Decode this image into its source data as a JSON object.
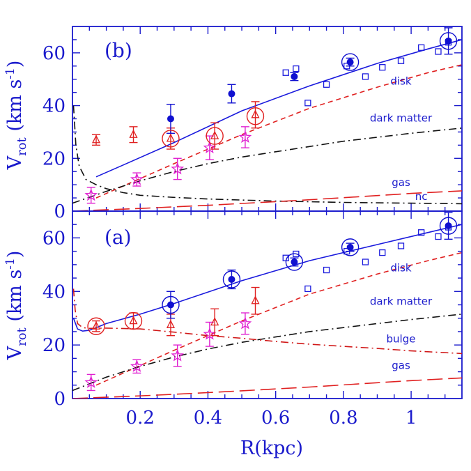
{
  "figure": {
    "y_label_main": "V",
    "y_label_sub": "rot",
    "y_label_unit": " (km s",
    "y_label_exp": "-1",
    "y_label_close": ")",
    "x_label": "R(kpc)",
    "colors": {
      "axis": "#1a1acc",
      "total": "#1a1add",
      "disk": "#e02020",
      "dark_matter": "#111111",
      "bulge": "#d01818",
      "gas": "#e02020",
      "nc": "#111111",
      "filled_points": "#1010d0",
      "open_squares": "#1a1add",
      "triangles": "#e02020",
      "stars": "#e020d0"
    }
  },
  "chart_data": [
    {
      "panel": "(b)",
      "type": "line",
      "xlim": [
        0.0,
        1.15
      ],
      "ylim": [
        0,
        70
      ],
      "x_ticks": [
        0.2,
        0.4,
        0.6,
        0.8,
        1.0
      ],
      "x_tick_labels": [
        "0.2",
        "0.4",
        "0.6",
        "0.8",
        "1"
      ],
      "y_ticks": [
        0,
        20,
        40,
        60
      ],
      "y_tick_labels": [
        "0",
        "20",
        "40",
        "60"
      ],
      "curves": [
        {
          "name": "total",
          "label": "",
          "style": "solid",
          "color_key": "total",
          "x": [
            0.07,
            0.15,
            0.3,
            0.5,
            0.7,
            0.9,
            1.05,
            1.15
          ],
          "y": [
            13,
            17.5,
            26,
            38,
            47.5,
            56,
            61.5,
            65
          ]
        },
        {
          "name": "disk",
          "label": "disk",
          "label_at": [
            0.97,
            48
          ],
          "style": "dashed",
          "color_key": "disk",
          "x": [
            0.07,
            0.15,
            0.3,
            0.5,
            0.7,
            0.9,
            1.05,
            1.15
          ],
          "y": [
            5,
            9.5,
            18,
            29,
            39,
            47,
            52.5,
            55.5
          ]
        },
        {
          "name": "dark_matter",
          "label": "dark matter",
          "label_at": [
            0.97,
            34
          ],
          "style": "dashdot",
          "color_key": "dark_matter",
          "x": [
            0.0,
            0.1,
            0.2,
            0.3,
            0.4,
            0.5,
            0.6,
            0.7,
            0.8,
            0.9,
            1.0,
            1.15
          ],
          "y": [
            3,
            7.5,
            11.5,
            15,
            18,
            20.5,
            22.5,
            24.5,
            26.5,
            28,
            29.5,
            31.5
          ]
        },
        {
          "name": "nc",
          "label": "nc",
          "label_at": [
            1.03,
            4.2
          ],
          "style": "dashdot",
          "color_key": "nc",
          "x": [
            0.003,
            0.01,
            0.02,
            0.04,
            0.07,
            0.1,
            0.15,
            0.2,
            0.3,
            0.4,
            0.6,
            0.8,
            1.0,
            1.15
          ],
          "y": [
            40,
            25,
            17,
            12,
            10,
            8.5,
            7,
            6,
            5.2,
            4.6,
            3.8,
            3.3,
            3,
            2.8
          ]
        },
        {
          "name": "gas",
          "label": "gas",
          "label_at": [
            0.97,
            9.5
          ],
          "style": "longdash",
          "color_key": "gas",
          "x": [
            0.0,
            0.1,
            0.2,
            0.3,
            0.4,
            0.5,
            0.6,
            0.7,
            0.8,
            0.9,
            1.0,
            1.15
          ],
          "y": [
            0,
            0.5,
            1,
            1.6,
            2.2,
            2.9,
            3.6,
            4.3,
            5.1,
            5.9,
            6.7,
            7.7
          ]
        }
      ],
      "filled_points": [
        {
          "x": 0.29,
          "y": 35,
          "err": 5.5
        },
        {
          "x": 0.47,
          "y": 44.5,
          "err": 3.5
        },
        {
          "x": 0.655,
          "y": 51,
          "err": 1.5
        },
        {
          "x": 0.82,
          "y": 56.5,
          "err": 1.5
        },
        {
          "x": 1.11,
          "y": 64.5,
          "err": 5
        }
      ],
      "open_squares": [
        {
          "x": 0.63,
          "y": 52.5
        },
        {
          "x": 0.66,
          "y": 54
        },
        {
          "x": 0.695,
          "y": 41
        },
        {
          "x": 0.75,
          "y": 48
        },
        {
          "x": 0.81,
          "y": 55
        },
        {
          "x": 0.865,
          "y": 51
        },
        {
          "x": 0.915,
          "y": 54.5
        },
        {
          "x": 0.97,
          "y": 57
        },
        {
          "x": 1.03,
          "y": 62
        },
        {
          "x": 1.08,
          "y": 60.5
        },
        {
          "x": 1.11,
          "y": 64
        }
      ],
      "triangles": [
        {
          "x": 0.07,
          "y": 27,
          "err": 2
        },
        {
          "x": 0.18,
          "y": 29,
          "err": 3
        },
        {
          "x": 0.29,
          "y": 27.5,
          "err": 4
        },
        {
          "x": 0.42,
          "y": 28.5,
          "err": 5
        },
        {
          "x": 0.54,
          "y": 36.5,
          "err": 5
        }
      ],
      "stars": [
        {
          "x": 0.055,
          "y": 6,
          "err": 3
        },
        {
          "x": 0.19,
          "y": 12,
          "err": 2.5
        },
        {
          "x": 0.31,
          "y": 16,
          "err": 4
        },
        {
          "x": 0.405,
          "y": 24,
          "err": 4.5
        },
        {
          "x": 0.51,
          "y": 28,
          "err": 4
        }
      ],
      "circles_blue": [
        {
          "x": 0.82,
          "y": 56.5
        },
        {
          "x": 1.11,
          "y": 64.5
        }
      ],
      "circles_red": [
        {
          "x": 0.29,
          "y": 27.5
        },
        {
          "x": 0.42,
          "y": 28.5
        },
        {
          "x": 0.54,
          "y": 36
        }
      ]
    },
    {
      "panel": "(a)",
      "type": "line",
      "xlim": [
        0.0,
        1.15
      ],
      "ylim": [
        0,
        70
      ],
      "x_ticks": [
        0.2,
        0.4,
        0.6,
        0.8,
        1.0
      ],
      "x_tick_labels": [
        "0.2",
        "0.4",
        "0.6",
        "0.8",
        "1"
      ],
      "y_ticks": [
        0,
        20,
        40,
        60
      ],
      "y_tick_labels": [
        "0",
        "20",
        "40",
        "60"
      ],
      "curves": [
        {
          "name": "total",
          "label": "",
          "style": "solid",
          "color_key": "total",
          "x": [
            0.003,
            0.015,
            0.03,
            0.05,
            0.07,
            0.1,
            0.2,
            0.3,
            0.5,
            0.7,
            0.9,
            1.05,
            1.15
          ],
          "y": [
            30,
            26,
            25.2,
            25.5,
            26.5,
            28,
            31.5,
            35.5,
            44,
            51.5,
            57.5,
            62,
            65
          ]
        },
        {
          "name": "disk",
          "label": "disk",
          "label_at": [
            0.97,
            47.5
          ],
          "style": "dashed",
          "color_key": "disk",
          "x": [
            0.07,
            0.15,
            0.3,
            0.5,
            0.7,
            0.9,
            1.05,
            1.15
          ],
          "y": [
            5,
            9.5,
            18,
            29,
            39,
            46.5,
            51.5,
            54.5
          ]
        },
        {
          "name": "dark_matter",
          "label": "dark matter",
          "label_at": [
            0.97,
            35
          ],
          "style": "dashdot",
          "color_key": "dark_matter",
          "x": [
            0.0,
            0.1,
            0.2,
            0.3,
            0.4,
            0.5,
            0.6,
            0.7,
            0.8,
            0.9,
            1.0,
            1.15
          ],
          "y": [
            3,
            8,
            12,
            15.5,
            18.5,
            21,
            23,
            25,
            26.5,
            28,
            29.5,
            31.5
          ]
        },
        {
          "name": "bulge",
          "label": "bulge",
          "label_at": [
            0.97,
            21
          ],
          "style": "dashdot",
          "color_key": "bulge",
          "x": [
            0.003,
            0.008,
            0.015,
            0.03,
            0.05,
            0.1,
            0.2,
            0.3,
            0.4,
            0.5,
            0.6,
            0.7,
            0.8,
            0.9,
            1.0,
            1.15
          ],
          "y": [
            41,
            33,
            28,
            26.5,
            26.2,
            26.3,
            26,
            24.8,
            23.5,
            22.5,
            21.3,
            20.3,
            19.5,
            18.7,
            17.8,
            16.8
          ]
        },
        {
          "name": "gas",
          "label": "gas",
          "label_at": [
            0.97,
            11
          ],
          "style": "longdash",
          "color_key": "gas",
          "x": [
            0.0,
            0.1,
            0.2,
            0.3,
            0.4,
            0.5,
            0.6,
            0.7,
            0.8,
            0.9,
            1.0,
            1.15
          ],
          "y": [
            0,
            0.5,
            1,
            1.6,
            2.2,
            2.9,
            3.6,
            4.3,
            5.1,
            5.9,
            6.7,
            7.7
          ]
        }
      ],
      "filled_points": [
        {
          "x": 0.29,
          "y": 35,
          "err": 5
        },
        {
          "x": 0.47,
          "y": 44.5,
          "err": 3.5
        },
        {
          "x": 0.655,
          "y": 51,
          "err": 1.5
        },
        {
          "x": 0.82,
          "y": 56.5,
          "err": 1.5
        },
        {
          "x": 1.11,
          "y": 64.5,
          "err": 5
        }
      ],
      "open_squares": [
        {
          "x": 0.63,
          "y": 52.5
        },
        {
          "x": 0.66,
          "y": 54
        },
        {
          "x": 0.695,
          "y": 41
        },
        {
          "x": 0.75,
          "y": 48
        },
        {
          "x": 0.81,
          "y": 55
        },
        {
          "x": 0.865,
          "y": 51
        },
        {
          "x": 0.915,
          "y": 54.5
        },
        {
          "x": 0.97,
          "y": 57
        },
        {
          "x": 1.03,
          "y": 62
        },
        {
          "x": 1.08,
          "y": 60.5
        },
        {
          "x": 1.11,
          "y": 64
        }
      ],
      "triangles": [
        {
          "x": 0.07,
          "y": 27,
          "err": 2
        },
        {
          "x": 0.18,
          "y": 29,
          "err": 3
        },
        {
          "x": 0.29,
          "y": 27.5,
          "err": 4
        },
        {
          "x": 0.42,
          "y": 28.5,
          "err": 5
        },
        {
          "x": 0.54,
          "y": 36.5,
          "err": 5
        }
      ],
      "stars": [
        {
          "x": 0.055,
          "y": 6,
          "err": 3
        },
        {
          "x": 0.19,
          "y": 12,
          "err": 2.5
        },
        {
          "x": 0.31,
          "y": 16,
          "err": 4
        },
        {
          "x": 0.405,
          "y": 24,
          "err": 4.5
        },
        {
          "x": 0.51,
          "y": 28,
          "err": 4
        }
      ],
      "circles_blue": [
        {
          "x": 0.29,
          "y": 35
        },
        {
          "x": 0.47,
          "y": 44.5
        },
        {
          "x": 0.655,
          "y": 51
        },
        {
          "x": 0.82,
          "y": 56.5
        },
        {
          "x": 1.11,
          "y": 64.5
        }
      ],
      "circles_red": [
        {
          "x": 0.07,
          "y": 27
        },
        {
          "x": 0.18,
          "y": 29
        }
      ]
    }
  ]
}
